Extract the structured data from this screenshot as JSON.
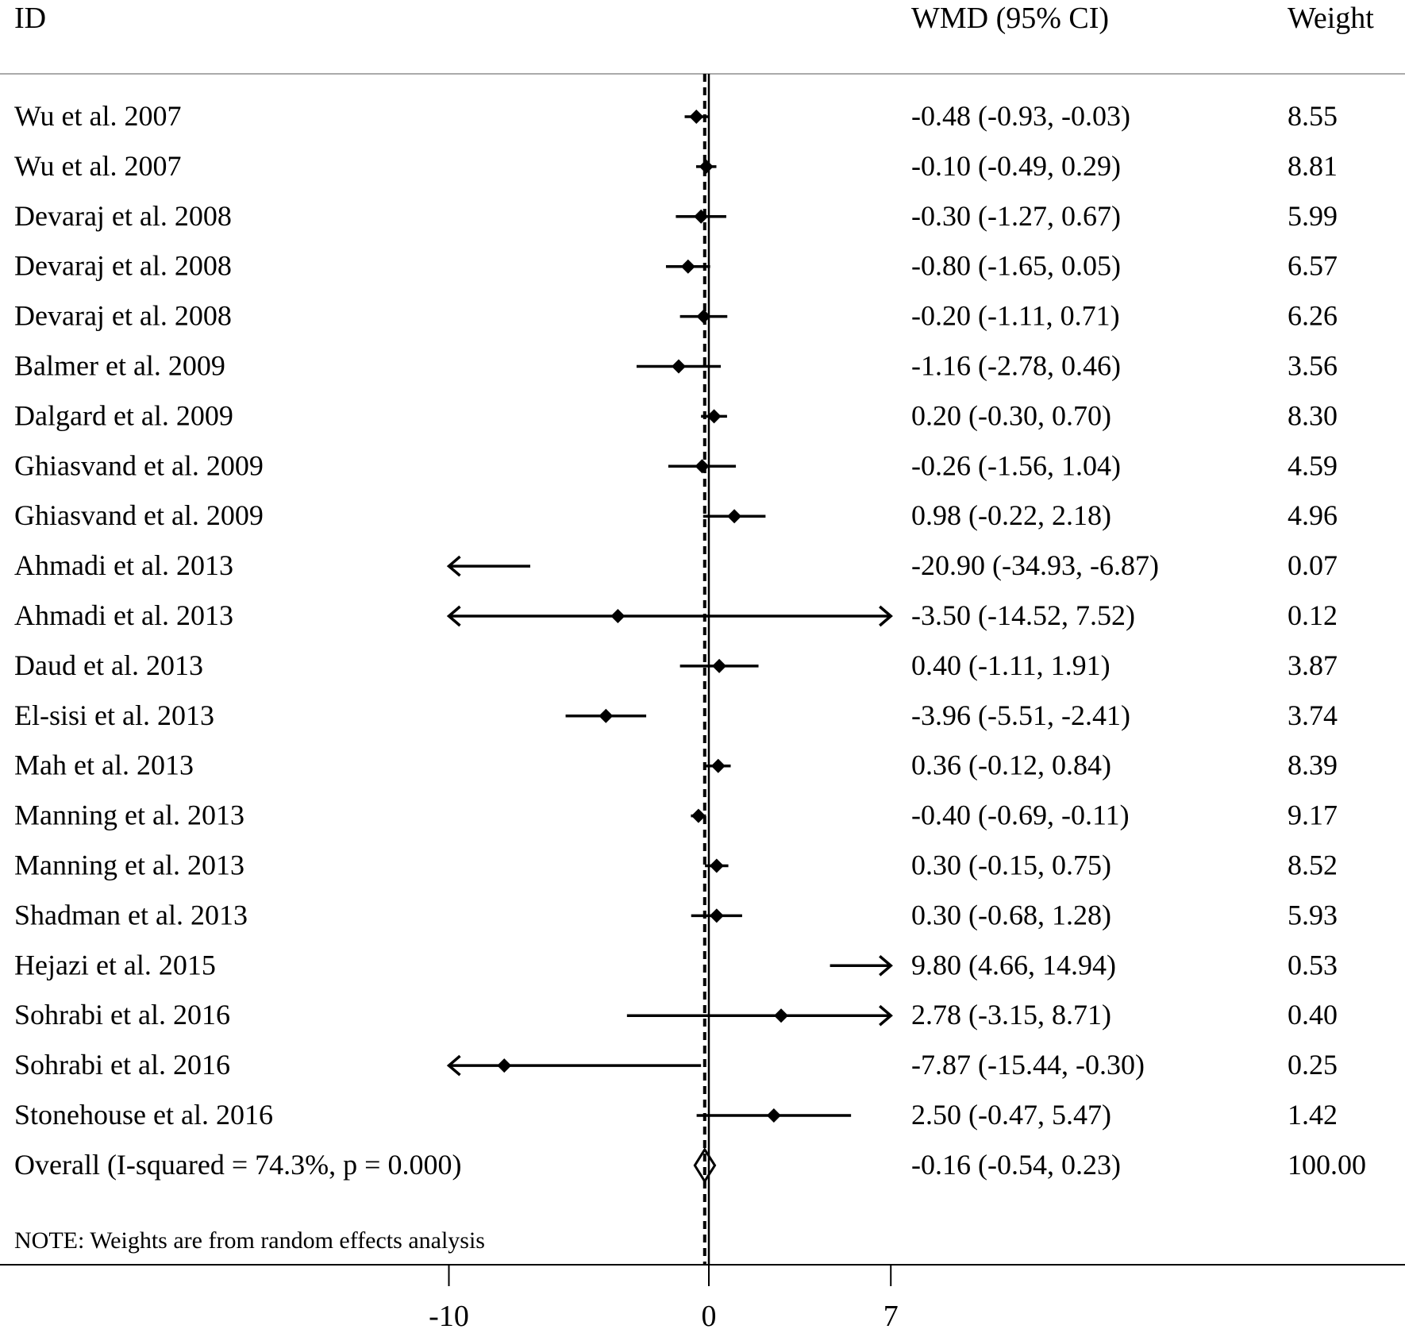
{
  "chart_data": {
    "type": "forest",
    "headers": {
      "id": "ID",
      "effect": "WMD (95% CI)",
      "weight": "Weight"
    },
    "studies": [
      {
        "id": "Wu et al. 2007",
        "est": -0.48,
        "lo": -0.93,
        "hi": -0.03,
        "ci_text": "-0.48 (-0.93, -0.03)",
        "weight": "8.55"
      },
      {
        "id": "Wu et al. 2007",
        "est": -0.1,
        "lo": -0.49,
        "hi": 0.29,
        "ci_text": "-0.10 (-0.49, 0.29)",
        "weight": "8.81"
      },
      {
        "id": "Devaraj et al. 2008",
        "est": -0.3,
        "lo": -1.27,
        "hi": 0.67,
        "ci_text": "-0.30 (-1.27, 0.67)",
        "weight": "5.99"
      },
      {
        "id": "Devaraj et al. 2008",
        "est": -0.8,
        "lo": -1.65,
        "hi": 0.05,
        "ci_text": "-0.80 (-1.65, 0.05)",
        "weight": "6.57"
      },
      {
        "id": "Devaraj et al. 2008",
        "est": -0.2,
        "lo": -1.11,
        "hi": 0.71,
        "ci_text": "-0.20 (-1.11, 0.71)",
        "weight": "6.26"
      },
      {
        "id": "Balmer et al. 2009",
        "est": -1.16,
        "lo": -2.78,
        "hi": 0.46,
        "ci_text": "-1.16 (-2.78, 0.46)",
        "weight": "3.56"
      },
      {
        "id": "Dalgard et al. 2009",
        "est": 0.2,
        "lo": -0.3,
        "hi": 0.7,
        "ci_text": "0.20 (-0.30, 0.70)",
        "weight": "8.30"
      },
      {
        "id": "Ghiasvand et al. 2009",
        "est": -0.26,
        "lo": -1.56,
        "hi": 1.04,
        "ci_text": "-0.26 (-1.56, 1.04)",
        "weight": "4.59"
      },
      {
        "id": "Ghiasvand et al. 2009",
        "est": 0.98,
        "lo": -0.22,
        "hi": 2.18,
        "ci_text": "0.98 (-0.22, 2.18)",
        "weight": "4.96"
      },
      {
        "id": "Ahmadi et al. 2013",
        "est": -20.9,
        "lo": -34.93,
        "hi": -6.87,
        "ci_text": "-20.90 (-34.93, -6.87)",
        "weight": "0.07"
      },
      {
        "id": "Ahmadi et al. 2013",
        "est": -3.5,
        "lo": -14.52,
        "hi": 7.52,
        "ci_text": "-3.50 (-14.52, 7.52)",
        "weight": "0.12"
      },
      {
        "id": "Daud et al. 2013",
        "est": 0.4,
        "lo": -1.11,
        "hi": 1.91,
        "ci_text": "0.40 (-1.11, 1.91)",
        "weight": "3.87"
      },
      {
        "id": "El-sisi et al. 2013",
        "est": -3.96,
        "lo": -5.51,
        "hi": -2.41,
        "ci_text": "-3.96 (-5.51, -2.41)",
        "weight": "3.74"
      },
      {
        "id": "Mah et al. 2013",
        "est": 0.36,
        "lo": -0.12,
        "hi": 0.84,
        "ci_text": "0.36 (-0.12, 0.84)",
        "weight": "8.39"
      },
      {
        "id": "Manning et al. 2013",
        "est": -0.4,
        "lo": -0.69,
        "hi": -0.11,
        "ci_text": "-0.40 (-0.69, -0.11)",
        "weight": "9.17"
      },
      {
        "id": "Manning et al. 2013",
        "est": 0.3,
        "lo": -0.15,
        "hi": 0.75,
        "ci_text": "0.30 (-0.15, 0.75)",
        "weight": "8.52"
      },
      {
        "id": "Shadman et al. 2013",
        "est": 0.3,
        "lo": -0.68,
        "hi": 1.28,
        "ci_text": "0.30 (-0.68, 1.28)",
        "weight": "5.93"
      },
      {
        "id": "Hejazi et al. 2015",
        "est": 9.8,
        "lo": 4.66,
        "hi": 14.94,
        "ci_text": "9.80 (4.66, 14.94)",
        "weight": "0.53"
      },
      {
        "id": "Sohrabi et al. 2016",
        "est": 2.78,
        "lo": -3.15,
        "hi": 8.71,
        "ci_text": "2.78 (-3.15, 8.71)",
        "weight": "0.40"
      },
      {
        "id": "Sohrabi et al. 2016",
        "est": -7.87,
        "lo": -15.44,
        "hi": -0.3,
        "ci_text": "-7.87 (-15.44, -0.30)",
        "weight": "0.25"
      },
      {
        "id": "Stonehouse et al. 2016",
        "est": 2.5,
        "lo": -0.47,
        "hi": 5.47,
        "ci_text": "2.50 (-0.47, 5.47)",
        "weight": "1.42"
      }
    ],
    "overall": {
      "label": "Overall  (I-squared = 74.3%, p = 0.000)",
      "est": -0.16,
      "lo": -0.54,
      "hi": 0.23,
      "ci_text": "-0.16 (-0.54, 0.23)",
      "weight": "100.00"
    },
    "note": "NOTE: Weights are from random effects analysis",
    "xaxis": {
      "ticks": [
        -10,
        0,
        7
      ],
      "tick_labels": [
        "-10",
        "0",
        "7"
      ],
      "range": [
        -10,
        7
      ]
    },
    "null_line": 0
  }
}
